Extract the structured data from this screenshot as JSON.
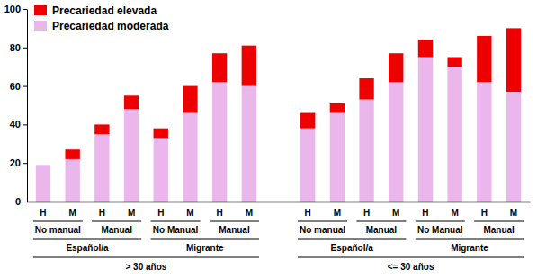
{
  "chart_data": {
    "type": "bar",
    "stacked": true,
    "grid": false,
    "legend": "top-left",
    "categories": [
      "H",
      "M",
      "H",
      "M",
      "H",
      "M",
      "H",
      "M",
      "H",
      "M",
      "H",
      "M",
      "H",
      "M",
      "H",
      "M"
    ],
    "x_groups": [
      {
        "label": "> 30 años",
        "children": [
          {
            "label": "Español/a",
            "children": [
              "No manual",
              "Manual"
            ]
          },
          {
            "label": "Migrante",
            "children": [
              "No Manual",
              "Manual"
            ]
          }
        ]
      },
      {
        "label": "<= 30 años",
        "children": [
          {
            "label": "Español/a",
            "children": [
              "No manual",
              "Manual"
            ]
          },
          {
            "label": "Migrante",
            "children": [
              "No Manual",
              "Manual"
            ]
          }
        ]
      }
    ],
    "series": [
      {
        "name": "Precariedad moderada",
        "color": "#ebb6eb",
        "values": [
          19,
          22,
          35,
          48,
          33,
          46,
          62,
          60,
          38,
          46,
          53,
          62,
          75,
          70,
          62,
          57
        ]
      },
      {
        "name": "Precariedad elevada",
        "color": "#ee0000",
        "values": [
          0,
          5,
          5,
          7,
          5,
          14,
          15,
          21,
          8,
          5,
          11,
          15,
          9,
          5,
          24,
          33
        ]
      }
    ],
    "ylim": [
      0,
      100
    ],
    "yticks": [
      0,
      20,
      40,
      60,
      80,
      100
    ]
  }
}
